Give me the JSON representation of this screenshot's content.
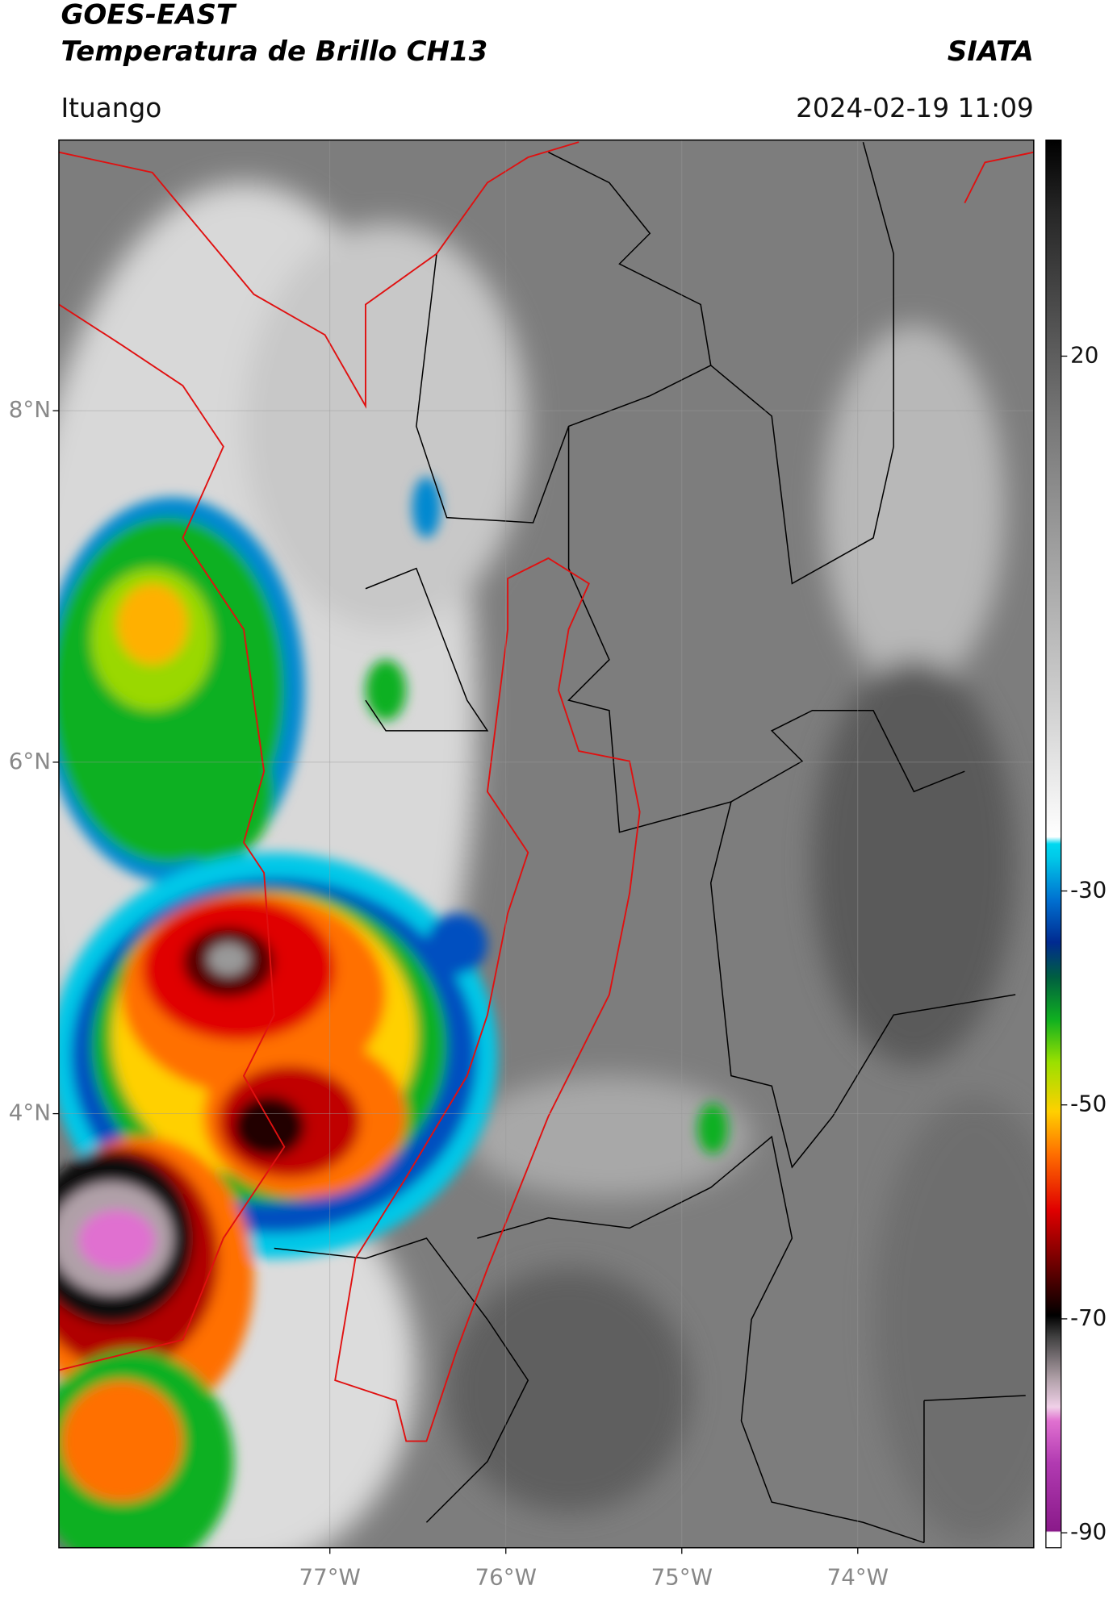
{
  "header": {
    "title_line1": "GOES-EAST",
    "title_line2": "Temperatura de Brillo CH13",
    "brand": "SIATA",
    "location": "Ituango",
    "datetime": "2024-02-19 11:09"
  },
  "map": {
    "latlim": [
      1.53,
      9.54
    ],
    "lonlim": [
      -78.54,
      -73.0
    ],
    "lat_ticks": [
      {
        "value": 8,
        "label": "8°N"
      },
      {
        "value": 6,
        "label": "6°N"
      },
      {
        "value": 4,
        "label": "4°N"
      }
    ],
    "lon_ticks": [
      {
        "value": -77,
        "label": "77°W"
      },
      {
        "value": -76,
        "label": "76°W"
      },
      {
        "value": -75,
        "label": "75°W"
      },
      {
        "value": -74,
        "label": "74°W"
      }
    ]
  },
  "colorbar": {
    "lim": [
      -91.4,
      40.2
    ],
    "ticks": [
      20,
      -30,
      -50,
      -70,
      -90
    ]
  }
}
